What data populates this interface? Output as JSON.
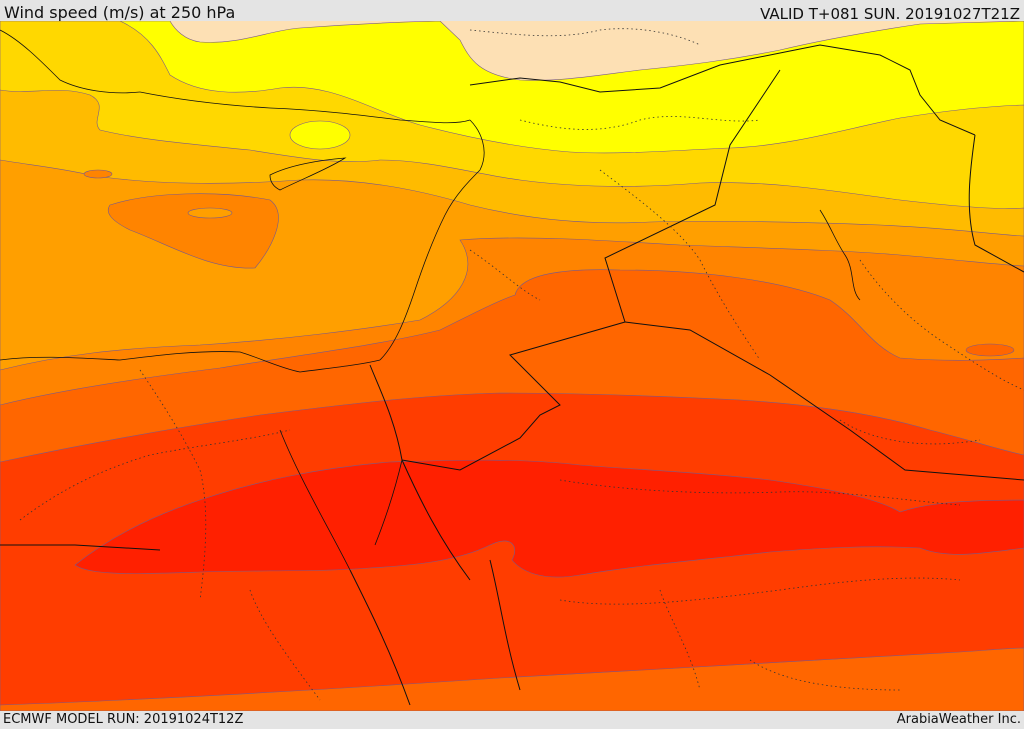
{
  "header": {
    "title": "Wind speed (m/s) at 250 hPa",
    "valid_time": "VALID T+081 SUN. 20191027T21Z"
  },
  "footer": {
    "model_run": "ECMWF MODEL RUN: 20191024T12Z",
    "credit": "ArabiaWeather Inc."
  },
  "map": {
    "variable": "Wind speed at 250 hPa",
    "colors": {
      "band_1": "#fde0b4",
      "band_2": "#ffff00",
      "band_3": "#ffd800",
      "band_4": "#ffbb00",
      "band_5": "#ff9f00",
      "band_6": "#ff8400",
      "band_7": "#ff6600",
      "band_8": "#ff3d00",
      "band_9": "#ff2000",
      "border_color": "#111111"
    }
  }
}
